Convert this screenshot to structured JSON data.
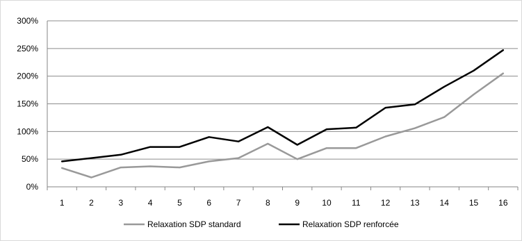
{
  "chart_data": {
    "type": "line",
    "title": "",
    "xlabel": "",
    "ylabel": "",
    "categories": [
      "1",
      "2",
      "3",
      "4",
      "5",
      "6",
      "7",
      "8",
      "9",
      "10",
      "11",
      "12",
      "13",
      "14",
      "15",
      "16"
    ],
    "y_tick_labels": [
      "0%",
      "50%",
      "100%",
      "150%",
      "200%",
      "250%",
      "300%"
    ],
    "ylim": [
      0,
      300
    ],
    "grid": true,
    "legend_position": "bottom",
    "series": [
      {
        "name": "Relaxation SDP standard",
        "color": "#999999",
        "values": [
          34,
          17,
          35,
          37,
          35,
          46,
          52,
          78,
          50,
          70,
          70,
          91,
          106,
          126,
          167,
          205
        ]
      },
      {
        "name": "Relaxation SDP renforcée",
        "color": "#000000",
        "values": [
          46,
          52,
          58,
          72,
          72,
          90,
          82,
          108,
          76,
          104,
          107,
          143,
          149,
          181,
          210,
          247
        ]
      }
    ]
  }
}
